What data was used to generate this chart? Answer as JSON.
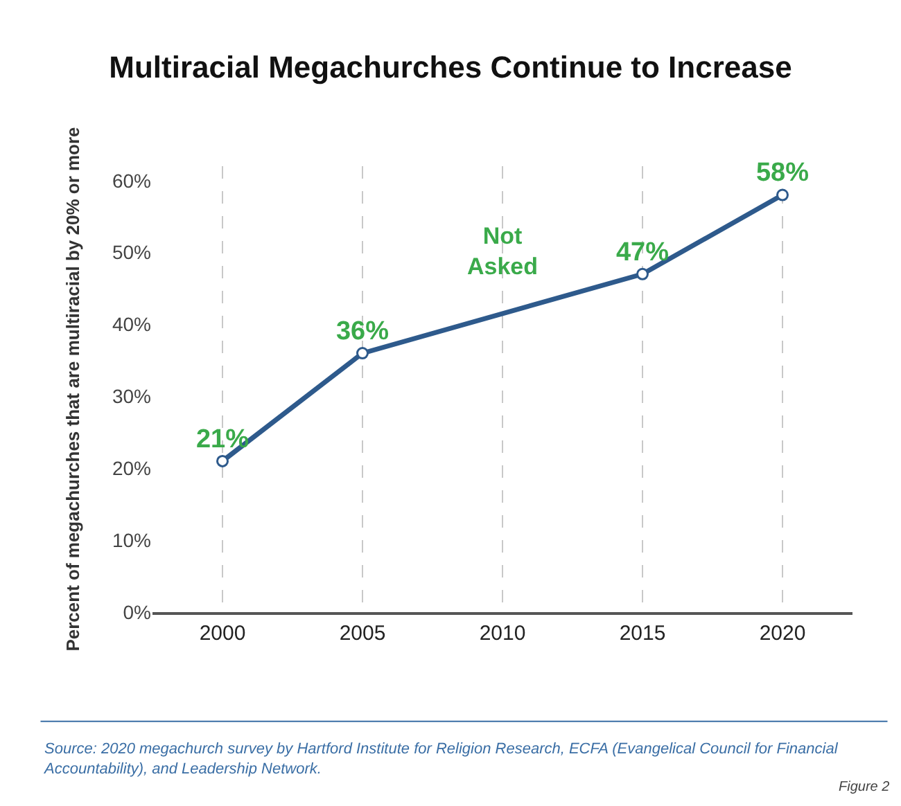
{
  "chart_data": {
    "type": "line",
    "title": "Multiracial Megachurches Continue to Increase",
    "ylabel": "Percent of megachurches that are multiracial by 20% or more",
    "xlim": [
      1997.5,
      2022.5
    ],
    "xticks": [
      2000,
      2005,
      2010,
      2015,
      2020
    ],
    "ylim": [
      0,
      62
    ],
    "yticks": [
      {
        "value": 0,
        "label": "0%"
      },
      {
        "value": 10,
        "label": "10%"
      },
      {
        "value": 20,
        "label": "20%"
      },
      {
        "value": 30,
        "label": "30%"
      },
      {
        "value": 40,
        "label": "40%"
      },
      {
        "value": 50,
        "label": "50%"
      },
      {
        "value": 60,
        "label": "60%"
      }
    ],
    "grid": "x",
    "marker": "circle",
    "line_style": "solid",
    "series": [
      {
        "color": "#2e5a8c",
        "x": [
          2000,
          2005,
          2015,
          2020
        ],
        "values": [
          21,
          36,
          47,
          58
        ],
        "value_labels": [
          "21%",
          "36%",
          "47%",
          "58%"
        ]
      }
    ],
    "annotations": [
      "Not\nAsked",
      "Source: 2020 megachurch survey by Hartford Institute for Religion Research, ECFA (Evangelical Council for Financial\nAccountability), and Leadership Network.",
      "Figure 2"
    ]
  }
}
